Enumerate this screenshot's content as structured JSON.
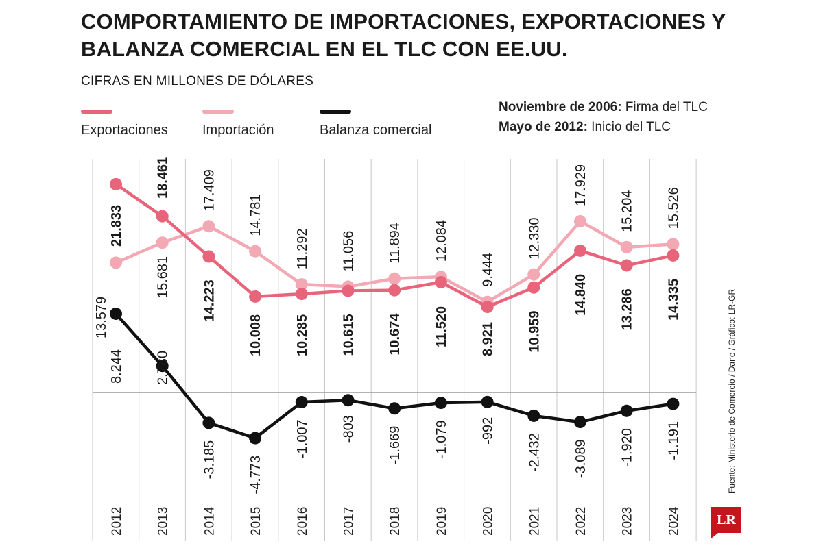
{
  "title": "COMPORTAMIENTO DE IMPORTACIONES, EXPORTACIONES Y BALANZA COMERCIAL EN EL TLC CON EE.UU.",
  "subtitle": "CIFRAS EN MILLONES DE DÓLARES",
  "legend": [
    {
      "label": "Exportaciones",
      "color": "#e8647a"
    },
    {
      "label": "Importación",
      "color": "#f2a9b4"
    },
    {
      "label": "Balanza comercial",
      "color": "#111111"
    }
  ],
  "notes": [
    {
      "bold": "Noviembre de 2006:",
      "text": " Firma del TLC"
    },
    {
      "bold": "Mayo de 2012:",
      "text": " Inicio del TLC"
    }
  ],
  "source": "Fuente: Ministerio de Comercio / Dane / Gráfico: LR-GR",
  "logo": "LR",
  "chart_data": {
    "type": "line",
    "x": [
      "2012",
      "2013",
      "2014",
      "2015",
      "2016",
      "2017",
      "2018",
      "2019",
      "2020",
      "2021",
      "2022",
      "2023",
      "2024"
    ],
    "series": [
      {
        "name": "Exportaciones",
        "color": "#e8647a",
        "values": [
          21833,
          18461,
          14223,
          10008,
          10285,
          10615,
          10674,
          11520,
          8921,
          10959,
          14840,
          13286,
          14335
        ],
        "labels": [
          "21.833",
          "18.461",
          "14.223",
          "10.008",
          "10.285",
          "10.615",
          "10.674",
          "11.520",
          "8.921",
          "10.959",
          "14.840",
          "13.286",
          "14.335"
        ]
      },
      {
        "name": "Importación",
        "color": "#f2a9b4",
        "values": [
          13579,
          15681,
          17409,
          14781,
          11292,
          11056,
          11894,
          12084,
          9444,
          12330,
          17929,
          15204,
          15526
        ],
        "labels": [
          "13.579",
          "15.681",
          "17.409",
          "14.781",
          "11.292",
          "11.056",
          "11.894",
          "12.084",
          "9.444",
          "12.330",
          "17.929",
          "15.204",
          "15.526"
        ]
      },
      {
        "name": "Balanza comercial",
        "color": "#111111",
        "values": [
          8244,
          2780,
          -3185,
          -4773,
          -1007,
          -803,
          -1669,
          -1079,
          -992,
          -2432,
          -3089,
          -1920,
          -1191
        ],
        "labels": [
          "8.244",
          "2.780",
          "-3.185",
          "-4.773",
          "-1.007",
          "-803",
          "-1.669",
          "-1.079",
          "-992",
          "-2.432",
          "-3.089",
          "-1.920",
          "-1.191"
        ]
      }
    ],
    "grid": true,
    "legend_position": "top"
  }
}
